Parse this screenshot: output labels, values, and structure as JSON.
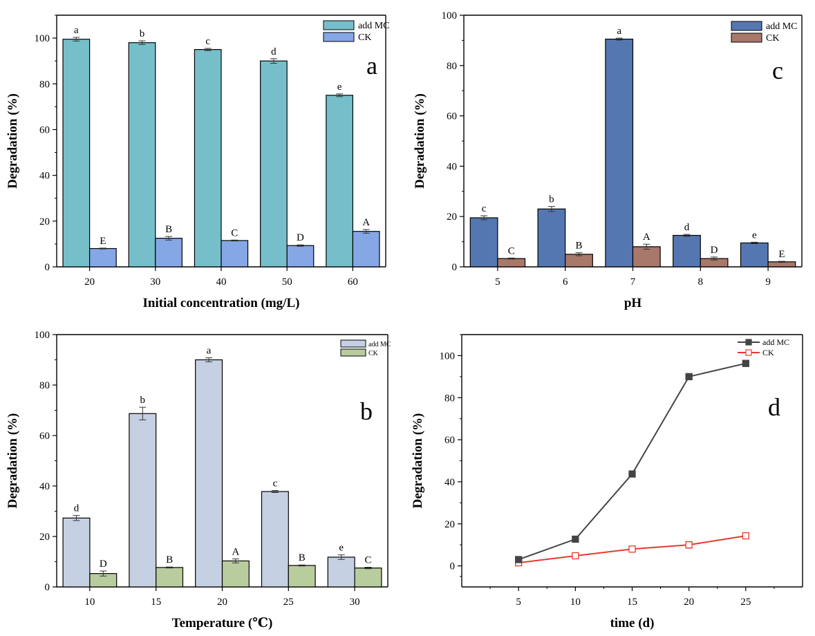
{
  "chart_data": [
    {
      "panel": "a",
      "type": "bar",
      "panel_letter": "a",
      "xlabel": "Initial concentration (mg/L)",
      "ylabel": "Degradation (%)",
      "categories": [
        "20",
        "30",
        "40",
        "50",
        "60"
      ],
      "ylim": [
        0,
        110
      ],
      "yticks": [
        0,
        20,
        40,
        60,
        80,
        100
      ],
      "series": [
        {
          "name": "add MC",
          "color": "#76bfca",
          "values": [
            99.5,
            98,
            95,
            90,
            75
          ],
          "errors": [
            0.8,
            0.8,
            0.5,
            1,
            0.6
          ],
          "letters": [
            "a",
            "b",
            "c",
            "d",
            "e"
          ]
        },
        {
          "name": "CK",
          "color": "#86a7e6",
          "values": [
            8,
            12.5,
            11.5,
            9.3,
            15.5
          ],
          "errors": [
            0.2,
            0.8,
            0.2,
            0.3,
            0.8
          ],
          "letters": [
            "E",
            "B",
            "C",
            "D",
            "A"
          ]
        }
      ]
    },
    {
      "panel": "c",
      "type": "bar",
      "panel_letter": "c",
      "xlabel": "pH",
      "ylabel": "Degradation (%)",
      "categories": [
        "5",
        "6",
        "7",
        "8",
        "9"
      ],
      "ylim": [
        0,
        100
      ],
      "yticks": [
        0,
        20,
        40,
        60,
        80,
        100
      ],
      "series": [
        {
          "name": "add MC",
          "color": "#5577b1",
          "values": [
            19.5,
            23,
            90.5,
            12.5,
            9.5
          ],
          "errors": [
            0.8,
            1,
            0.4,
            0.4,
            0.3
          ],
          "letters": [
            "c",
            "b",
            "a",
            "d",
            "e"
          ]
        },
        {
          "name": "CK",
          "color": "#a8786a",
          "values": [
            3.3,
            5,
            8,
            3.3,
            2
          ],
          "errors": [
            0.2,
            0.6,
            1,
            0.6,
            0.2
          ],
          "letters": [
            "C",
            "B",
            "A",
            "D",
            "E"
          ]
        }
      ]
    },
    {
      "panel": "b",
      "type": "bar",
      "panel_letter": "b",
      "xlabel": "Temperature (℃)",
      "ylabel": "Degradation (%)",
      "categories": [
        "10",
        "15",
        "20",
        "25",
        "30"
      ],
      "ylim": [
        0,
        100
      ],
      "yticks": [
        0,
        20,
        40,
        60,
        80,
        100
      ],
      "series": [
        {
          "name": "add MC",
          "color": "#c5d0e3",
          "values": [
            27.3,
            68.7,
            90,
            37.8,
            11.8
          ],
          "errors": [
            1,
            2.5,
            0.8,
            0.4,
            0.9
          ],
          "letters": [
            "d",
            "b",
            "a",
            "c",
            "e"
          ]
        },
        {
          "name": "CK",
          "color": "#b8cc9e",
          "values": [
            5.3,
            7.7,
            10.3,
            8.5,
            7.5
          ],
          "errors": [
            1,
            0.2,
            0.8,
            0.2,
            0.3
          ],
          "letters": [
            "D",
            "B",
            "A",
            "B",
            "C"
          ]
        }
      ]
    },
    {
      "panel": "d",
      "type": "line",
      "panel_letter": "d",
      "xlabel": "time (d)",
      "ylabel": "Degradation (%)",
      "x": [
        5,
        10,
        15,
        20,
        25
      ],
      "xlim": [
        0,
        30
      ],
      "ylim": [
        -10,
        110
      ],
      "xticks": [
        5,
        10,
        15,
        20,
        25
      ],
      "yticks": [
        0,
        20,
        40,
        60,
        80,
        100
      ],
      "series": [
        {
          "name": "add MC",
          "color": "#444444",
          "marker": "filled-square",
          "values": [
            3,
            12.7,
            43.7,
            90,
            96.3
          ],
          "errors": [
            0.5,
            1,
            0.8,
            0.5,
            1.5
          ]
        },
        {
          "name": "CK",
          "color": "#e8392b",
          "marker": "open-square",
          "values": [
            1.5,
            4.8,
            8,
            10,
            14.3
          ],
          "errors": [
            0.6,
            0.5,
            1.3,
            1.6,
            0.8
          ]
        }
      ]
    }
  ]
}
